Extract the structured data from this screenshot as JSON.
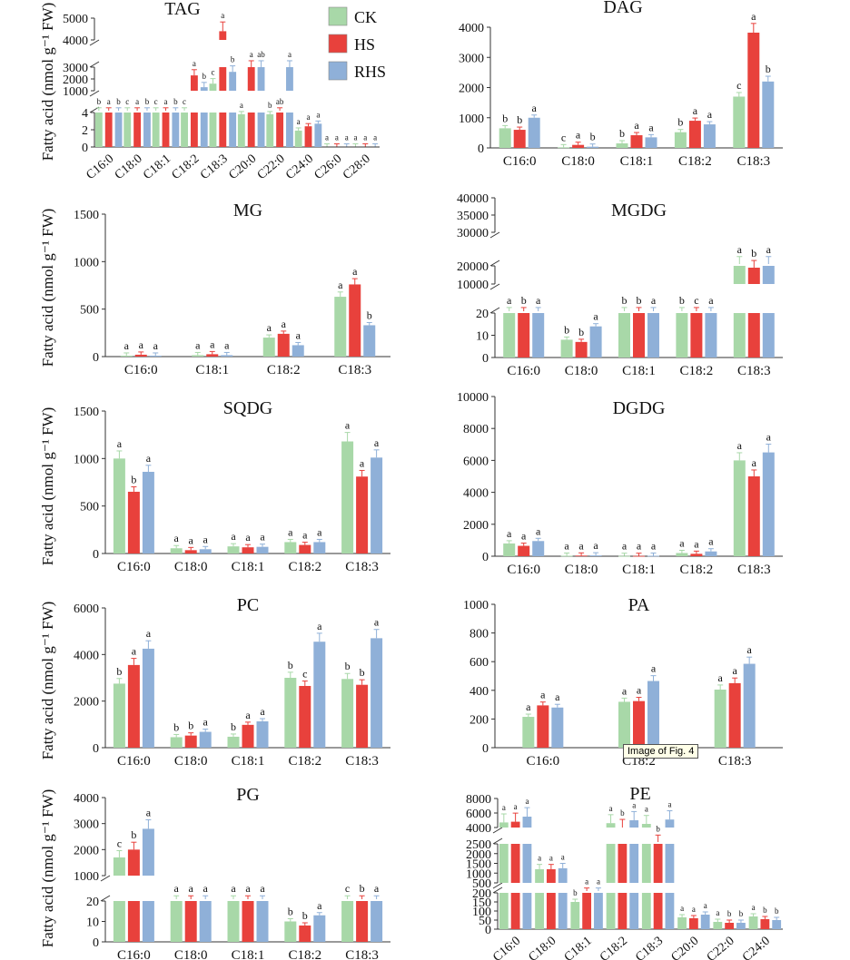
{
  "figure": {
    "legend": [
      {
        "name": "CK",
        "color": "#a8d8a8"
      },
      {
        "name": "HS",
        "color": "#e8413c"
      },
      {
        "name": "RHS",
        "color": "#8fb0d8"
      }
    ],
    "ylabel": "Fatty acid (nmol g⁻¹ FW)",
    "tooltip": "Image of Fig. 4"
  },
  "chart_data": [
    {
      "id": "tag",
      "type": "bar",
      "title": "TAG",
      "broken_axis": true,
      "segments": [
        [
          0,
          4
        ],
        [
          1000,
          3000
        ],
        [
          4000,
          5000
        ]
      ],
      "ticks": [
        "0",
        "2",
        "4",
        "1000",
        "2000",
        "3000",
        "4000",
        "5000"
      ],
      "categories": [
        "C16:0",
        "C18:0",
        "C18:1",
        "C18:2",
        "C18:3",
        "C20:0",
        "C22:0",
        "C24:0",
        "C26:0",
        "C28:0"
      ],
      "series": [
        {
          "name": "CK",
          "values": [
            600,
            500,
            500,
            850,
            1600,
            3.8,
            3.8,
            1.9,
            0.05,
            0.05
          ],
          "letters": [
            "b",
            "c",
            "c",
            "c",
            "c",
            "a",
            "b",
            "a",
            "a",
            "a"
          ]
        },
        {
          "name": "HS",
          "values": [
            650,
            550,
            550,
            2300,
            4400,
            3000,
            4.3,
            2.4,
            0.05,
            0.05
          ],
          "letters": [
            "a",
            "a",
            "a",
            "a",
            "a",
            "a",
            "ab",
            "a",
            "a",
            "a"
          ]
        },
        {
          "name": "RHS",
          "values": [
            600,
            500,
            500,
            1300,
            2600,
            3000,
            3000,
            2.7,
            0.05,
            0.05
          ],
          "letters": [
            "b",
            "b",
            "b",
            "b",
            "b",
            "ab",
            "a",
            "a",
            "a",
            "a"
          ]
        }
      ]
    },
    {
      "id": "dag",
      "type": "bar",
      "title": "DAG",
      "ticks": [
        "0",
        "1000",
        "2000",
        "3000",
        "4000"
      ],
      "ylim": [
        0,
        4000
      ],
      "categories": [
        "C16:0",
        "C18:0",
        "C18:1",
        "C18:2",
        "C18:3"
      ],
      "series": [
        {
          "name": "CK",
          "values": [
            650,
            20,
            150,
            520,
            1700
          ],
          "letters": [
            "b",
            "c",
            "b",
            "b",
            "c"
          ]
        },
        {
          "name": "HS",
          "values": [
            600,
            100,
            420,
            900,
            3820
          ],
          "letters": [
            "b",
            "a",
            "a",
            "a",
            "a"
          ]
        },
        {
          "name": "RHS",
          "values": [
            1000,
            40,
            350,
            780,
            2200
          ],
          "letters": [
            "a",
            "b",
            "a",
            "a",
            "b"
          ]
        }
      ]
    },
    {
      "id": "mg",
      "type": "bar",
      "title": "MG",
      "ticks": [
        "0",
        "500",
        "1000",
        "1500"
      ],
      "ylim": [
        0,
        1500
      ],
      "categories": [
        "C16:0",
        "C18:1",
        "C18:2",
        "C18:3"
      ],
      "series": [
        {
          "name": "CK",
          "values": [
            10,
            15,
            200,
            630
          ],
          "letters": [
            "a",
            "a",
            "a",
            "a"
          ]
        },
        {
          "name": "HS",
          "values": [
            20,
            25,
            240,
            760
          ],
          "letters": [
            "a",
            "a",
            "a",
            "a"
          ]
        },
        {
          "name": "RHS",
          "values": [
            10,
            15,
            120,
            330
          ],
          "letters": [
            "a",
            "a",
            "a",
            "b"
          ]
        }
      ]
    },
    {
      "id": "mgdg",
      "type": "bar",
      "title": "MGDG",
      "broken_axis": true,
      "segments": [
        [
          0,
          20
        ],
        [
          10000,
          20000
        ],
        [
          30000,
          40000
        ]
      ],
      "ticks": [
        "0",
        "10",
        "20",
        "10000",
        "20000",
        "30000",
        "35000",
        "40000"
      ],
      "categories": [
        "C16:0",
        "C18:0",
        "C18:1",
        "C18:2",
        "C18:3"
      ],
      "series": [
        {
          "name": "CK",
          "values": [
            5000,
            8,
            5000,
            5000,
            22000
          ],
          "letters": [
            "a",
            "b",
            "b",
            "b",
            "a"
          ]
        },
        {
          "name": "HS",
          "values": [
            5000,
            7,
            5000,
            5000,
            19000
          ],
          "letters": [
            "b",
            "b",
            "b",
            "c",
            "b"
          ]
        },
        {
          "name": "RHS",
          "values": [
            5000,
            14,
            5000,
            6000,
            29000
          ],
          "letters": [
            "a",
            "a",
            "a",
            "a",
            "a"
          ]
        }
      ]
    },
    {
      "id": "sqdg",
      "type": "bar",
      "title": "SQDG",
      "ticks": [
        "0",
        "500",
        "1000",
        "1500"
      ],
      "ylim": [
        0,
        1500
      ],
      "categories": [
        "C16:0",
        "C18:0",
        "C18:1",
        "C18:2",
        "C18:3"
      ],
      "series": [
        {
          "name": "CK",
          "values": [
            1000,
            55,
            75,
            120,
            1180
          ],
          "letters": [
            "a",
            "a",
            "a",
            "a",
            "a"
          ]
        },
        {
          "name": "HS",
          "values": [
            650,
            35,
            65,
            90,
            810
          ],
          "letters": [
            "b",
            "a",
            "a",
            "a",
            "a"
          ]
        },
        {
          "name": "RHS",
          "values": [
            860,
            45,
            70,
            120,
            1010
          ],
          "letters": [
            "a",
            "a",
            "a",
            "a",
            "a"
          ]
        }
      ]
    },
    {
      "id": "dgdg",
      "type": "bar",
      "title": "DGDG",
      "ticks": [
        "0",
        "2000",
        "4000",
        "6000",
        "8000",
        "10000"
      ],
      "ylim": [
        0,
        10000
      ],
      "categories": [
        "C16:0",
        "C18:0",
        "C18:1",
        "C18:2",
        "C18:3"
      ],
      "series": [
        {
          "name": "CK",
          "values": [
            800,
            30,
            20,
            200,
            6000
          ],
          "letters": [
            "a",
            "a",
            "a",
            "a",
            "a"
          ]
        },
        {
          "name": "HS",
          "values": [
            650,
            40,
            20,
            150,
            5000
          ],
          "letters": [
            "a",
            "a",
            "a",
            "a",
            "a"
          ]
        },
        {
          "name": "RHS",
          "values": [
            950,
            50,
            30,
            300,
            6500
          ],
          "letters": [
            "a",
            "a",
            "a",
            "a",
            "a"
          ]
        }
      ]
    },
    {
      "id": "pc",
      "type": "bar",
      "title": "PC",
      "ticks": [
        "0",
        "2000",
        "4000",
        "6000"
      ],
      "ylim": [
        0,
        6000
      ],
      "categories": [
        "C16:0",
        "C18:0",
        "C18:1",
        "C18:2",
        "C18:3"
      ],
      "series": [
        {
          "name": "CK",
          "values": [
            2750,
            450,
            470,
            3000,
            2950
          ],
          "letters": [
            "b",
            "b",
            "b",
            "b",
            "b"
          ]
        },
        {
          "name": "HS",
          "values": [
            3550,
            520,
            980,
            2650,
            2700
          ],
          "letters": [
            "a",
            "b",
            "a",
            "c",
            "b"
          ]
        },
        {
          "name": "RHS",
          "values": [
            4250,
            680,
            1130,
            4550,
            4700
          ],
          "letters": [
            "a",
            "a",
            "a",
            "a",
            "a"
          ]
        }
      ]
    },
    {
      "id": "pa",
      "type": "bar",
      "title": "PA",
      "ticks": [
        "0",
        "200",
        "400",
        "600",
        "800",
        "1000"
      ],
      "ylim": [
        0,
        1000
      ],
      "categories": [
        "C16:0",
        "C18:2",
        "C18:3"
      ],
      "series": [
        {
          "name": "CK",
          "values": [
            215,
            320,
            405
          ],
          "letters": [
            "a",
            "a",
            "a"
          ]
        },
        {
          "name": "HS",
          "values": [
            295,
            325,
            450
          ],
          "letters": [
            "a",
            "a",
            "a"
          ]
        },
        {
          "name": "RHS",
          "values": [
            280,
            465,
            585
          ],
          "letters": [
            "a",
            "a",
            "a"
          ]
        }
      ]
    },
    {
      "id": "pg",
      "type": "bar",
      "title": "PG",
      "broken_axis": true,
      "segments": [
        [
          0,
          20
        ],
        [
          1000,
          4000
        ]
      ],
      "ticks": [
        "0",
        "10",
        "20",
        "1000",
        "2000",
        "3000",
        "4000"
      ],
      "categories": [
        "C16:0",
        "C18:0",
        "C18:1",
        "C18:2",
        "C18:3"
      ],
      "series": [
        {
          "name": "CK",
          "values": [
            1700,
            500,
            500,
            10,
            500
          ],
          "letters": [
            "c",
            "a",
            "a",
            "b",
            "c"
          ]
        },
        {
          "name": "HS",
          "values": [
            2000,
            500,
            500,
            8,
            500
          ],
          "letters": [
            "b",
            "a",
            "a",
            "b",
            "b"
          ]
        },
        {
          "name": "RHS",
          "values": [
            2800,
            600,
            600,
            13,
            600
          ],
          "letters": [
            "a",
            "a",
            "a",
            "a",
            "a"
          ]
        }
      ]
    },
    {
      "id": "pe",
      "type": "bar",
      "title": "PE",
      "broken_axis": true,
      "segments": [
        [
          0,
          200
        ],
        [
          500,
          2500
        ],
        [
          4000,
          8000
        ]
      ],
      "ticks": [
        "0",
        "50",
        "100",
        "150",
        "200",
        "500",
        "1000",
        "1500",
        "2000",
        "2500",
        "4000",
        "6000",
        "8000"
      ],
      "categories": [
        "C16:0",
        "C18:0",
        "C18:1",
        "C18:2",
        "C18:3",
        "C20:0",
        "C22:0",
        "C24:0"
      ],
      "series": [
        {
          "name": "CK",
          "values": [
            4700,
            1200,
            150,
            4600,
            4500,
            65,
            40,
            70
          ],
          "letters": [
            "a",
            "a",
            "b",
            "a",
            "a",
            "a",
            "a",
            "a"
          ]
        },
        {
          "name": "HS",
          "values": [
            4800,
            1200,
            400,
            4000,
            3900,
            60,
            35,
            55
          ],
          "letters": [
            "a",
            "a",
            "a",
            "b",
            "b",
            "a",
            "b",
            "b"
          ]
        },
        {
          "name": "RHS",
          "values": [
            5500,
            1250,
            420,
            5000,
            5100,
            80,
            35,
            50
          ],
          "letters": [
            "a",
            "a",
            "a",
            "a",
            "a",
            "a",
            "b",
            "b"
          ]
        }
      ]
    }
  ]
}
